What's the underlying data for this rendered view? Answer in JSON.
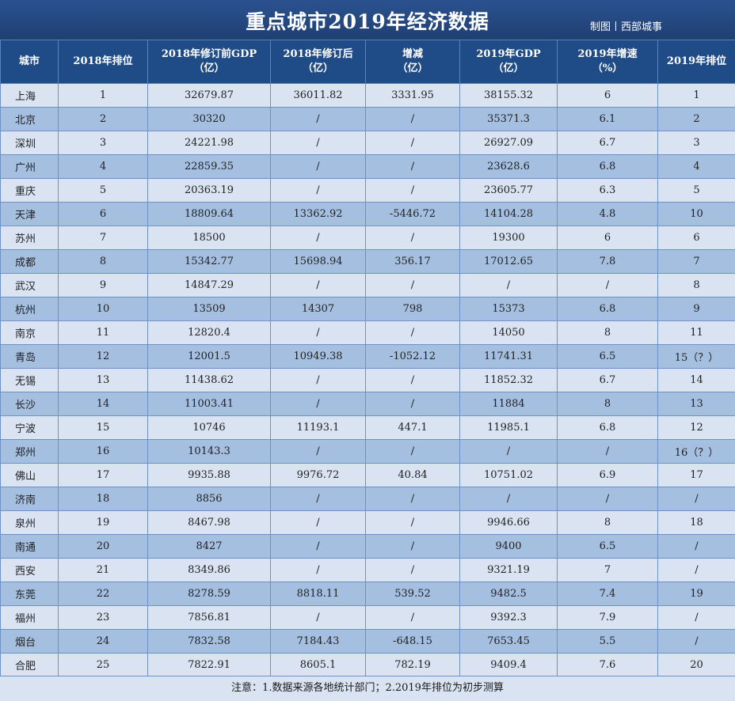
{
  "title": "重点城市2019年经济数据",
  "credit": "制图丨西部城事",
  "headers": [
    {
      "line1": "城市",
      "line2": ""
    },
    {
      "line1": "2018年排位",
      "line2": ""
    },
    {
      "line1": "2018年修订前GDP",
      "line2": "（亿）"
    },
    {
      "line1": "2018年修订后",
      "line2": "（亿）"
    },
    {
      "line1": "增减",
      "line2": "（亿）"
    },
    {
      "line1": "2019年GDP",
      "line2": "（亿）"
    },
    {
      "line1": "2019年增速",
      "line2": "（%）"
    },
    {
      "line1": "2019年排位",
      "line2": ""
    }
  ],
  "rows": [
    [
      "上海",
      "1",
      "32679.87",
      "36011.82",
      "3331.95",
      "38155.32",
      "6",
      "1"
    ],
    [
      "北京",
      "2",
      "30320",
      "/",
      "/",
      "35371.3",
      "6.1",
      "2"
    ],
    [
      "深圳",
      "3",
      "24221.98",
      "/",
      "/",
      "26927.09",
      "6.7",
      "3"
    ],
    [
      "广州",
      "4",
      "22859.35",
      "/",
      "/",
      "23628.6",
      "6.8",
      "4"
    ],
    [
      "重庆",
      "5",
      "20363.19",
      "/",
      "/",
      "23605.77",
      "6.3",
      "5"
    ],
    [
      "天津",
      "6",
      "18809.64",
      "13362.92",
      "-5446.72",
      "14104.28",
      "4.8",
      "10"
    ],
    [
      "苏州",
      "7",
      "18500",
      "/",
      "/",
      "19300",
      "6",
      "6"
    ],
    [
      "成都",
      "8",
      "15342.77",
      "15698.94",
      "356.17",
      "17012.65",
      "7.8",
      "7"
    ],
    [
      "武汉",
      "9",
      "14847.29",
      "/",
      "/",
      "/",
      "/",
      "8"
    ],
    [
      "杭州",
      "10",
      "13509",
      "14307",
      "798",
      "15373",
      "6.8",
      "9"
    ],
    [
      "南京",
      "11",
      "12820.4",
      "/",
      "/",
      "14050",
      "8",
      "11"
    ],
    [
      "青岛",
      "12",
      "12001.5",
      "10949.38",
      "-1052.12",
      "11741.31",
      "6.5",
      "15（？）"
    ],
    [
      "无锡",
      "13",
      "11438.62",
      "/",
      "/",
      "11852.32",
      "6.7",
      "14"
    ],
    [
      "长沙",
      "14",
      "11003.41",
      "/",
      "/",
      "11884",
      "8",
      "13"
    ],
    [
      "宁波",
      "15",
      "10746",
      "11193.1",
      "447.1",
      "11985.1",
      "6.8",
      "12"
    ],
    [
      "郑州",
      "16",
      "10143.3",
      "/",
      "/",
      "/",
      "/",
      "16（？）"
    ],
    [
      "佛山",
      "17",
      "9935.88",
      "9976.72",
      "40.84",
      "10751.02",
      "6.9",
      "17"
    ],
    [
      "济南",
      "18",
      "8856",
      "/",
      "/",
      "/",
      "/",
      "/"
    ],
    [
      "泉州",
      "19",
      "8467.98",
      "/",
      "/",
      "9946.66",
      "8",
      "18"
    ],
    [
      "南通",
      "20",
      "8427",
      "/",
      "/",
      "9400",
      "6.5",
      "/"
    ],
    [
      "西安",
      "21",
      "8349.86",
      "/",
      "/",
      "9321.19",
      "7",
      "/"
    ],
    [
      "东莞",
      "22",
      "8278.59",
      "8818.11",
      "539.52",
      "9482.5",
      "7.4",
      "19"
    ],
    [
      "福州",
      "23",
      "7856.81",
      "/",
      "/",
      "9392.3",
      "7.9",
      "/"
    ],
    [
      "烟台",
      "24",
      "7832.58",
      "7184.43",
      "-648.15",
      "7653.45",
      "5.5",
      "/"
    ],
    [
      "合肥",
      "25",
      "7822.91",
      "8605.1",
      "782.19",
      "9409.4",
      "7.6",
      "20"
    ]
  ],
  "footer": "注意：1.数据来源各地统计部门；2.2019年排位为初步测算",
  "colors": {
    "header_bg": "#1f4b86",
    "row_light": "#d9e3f1",
    "row_dark": "#a5bfe1"
  }
}
